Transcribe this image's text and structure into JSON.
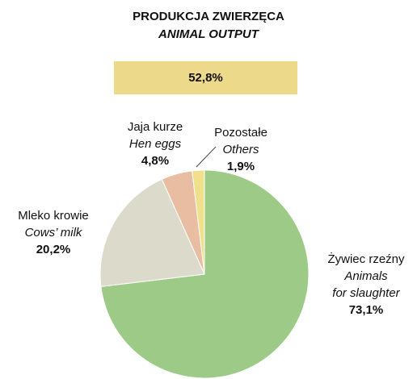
{
  "chart_data": {
    "type": "pie",
    "title": "PRODUKCJA  ZWIERZĘCA",
    "subtitle": "ANIMAL  OUTPUT",
    "share": {
      "value": 52.8,
      "label": "52,8%"
    },
    "share_color": "#ecd98a",
    "categories": [
      "Żywiec rzeźny",
      "Mleko krowie",
      "Jaja kurze",
      "Pozostałe"
    ],
    "categories_en": [
      "Animals\nfor slaughter",
      "Cows’ milk",
      "Hen eggs",
      "Others"
    ],
    "values": [
      73.1,
      20.2,
      4.8,
      1.9
    ],
    "value_labels": [
      "73,1%",
      "20,2%",
      "4,8%",
      "1,9%"
    ],
    "colors": [
      "#9dcb87",
      "#dcdbcb",
      "#e8bda1",
      "#f0e08c"
    ]
  }
}
